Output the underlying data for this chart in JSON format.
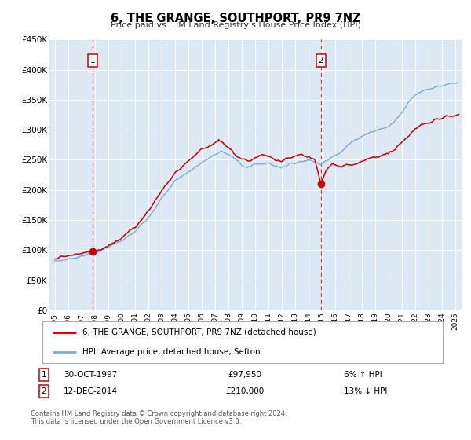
{
  "title": "6, THE GRANGE, SOUTHPORT, PR9 7NZ",
  "subtitle": "Price paid vs. HM Land Registry's House Price Index (HPI)",
  "ylim": [
    0,
    450000
  ],
  "yticks": [
    0,
    50000,
    100000,
    150000,
    200000,
    250000,
    300000,
    350000,
    400000,
    450000
  ],
  "ytick_labels": [
    "£0",
    "£50K",
    "£100K",
    "£150K",
    "£200K",
    "£250K",
    "£300K",
    "£350K",
    "£400K",
    "£450K"
  ],
  "xlim_start": 1994.6,
  "xlim_end": 2025.5,
  "xticks": [
    1995,
    1996,
    1997,
    1998,
    1999,
    2000,
    2001,
    2002,
    2003,
    2004,
    2005,
    2006,
    2007,
    2008,
    2009,
    2010,
    2011,
    2012,
    2013,
    2014,
    2015,
    2016,
    2017,
    2018,
    2019,
    2020,
    2021,
    2022,
    2023,
    2024,
    2025
  ],
  "sale1_x": 1997.83,
  "sale1_y": 97950,
  "sale1_label": "1",
  "sale1_date": "30-OCT-1997",
  "sale1_price": "£97,950",
  "sale1_hpi": "6% ↑ HPI",
  "sale2_x": 2014.95,
  "sale2_y": 210000,
  "sale2_label": "2",
  "sale2_date": "12-DEC-2014",
  "sale2_price": "£210,000",
  "sale2_hpi": "13% ↓ HPI",
  "red_line_color": "#cc0000",
  "blue_line_color": "#7aaed6",
  "bg_color": "#dce9f5",
  "marker_color": "#cc0000",
  "dashed_line_color": "#cc0000",
  "legend_line1": "6, THE GRANGE, SOUTHPORT, PR9 7NZ (detached house)",
  "legend_line2": "HPI: Average price, detached house, Sefton",
  "footnote": "Contains HM Land Registry data © Crown copyright and database right 2024.\nThis data is licensed under the Open Government Licence v3.0."
}
